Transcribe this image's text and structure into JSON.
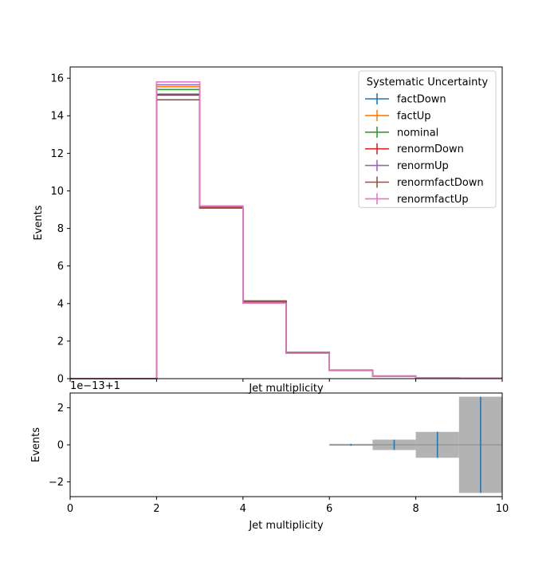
{
  "chart_data": [
    {
      "type": "step",
      "panel": "top",
      "title": "",
      "xlabel": "Jet multiplicity",
      "ylabel": "Events",
      "xlim": [
        0,
        10
      ],
      "ylim": [
        0,
        16.6
      ],
      "yticks": [
        0,
        2,
        4,
        6,
        8,
        10,
        12,
        14,
        16
      ],
      "xticks": [
        0,
        2,
        4,
        6,
        8,
        10
      ],
      "xtick_labels_shown": false,
      "bin_edges": [
        0,
        1,
        2,
        3,
        4,
        5,
        6,
        7,
        8,
        9,
        10
      ],
      "legend": {
        "title": "Systematic Uncertainty",
        "placement": "top-right"
      },
      "series": [
        {
          "name": "factDown",
          "color": "#1f77b4",
          "values": [
            0,
            0,
            15.15,
            9.12,
            4.1,
            1.38,
            0.44,
            0.13,
            0.05,
            0.02
          ]
        },
        {
          "name": "factUp",
          "color": "#ff7f0e",
          "values": [
            0,
            0,
            15.55,
            9.15,
            4.08,
            1.37,
            0.44,
            0.13,
            0.05,
            0.02
          ]
        },
        {
          "name": "nominal",
          "color": "#2ca02c",
          "values": [
            0,
            0,
            15.4,
            9.14,
            4.09,
            1.38,
            0.44,
            0.13,
            0.05,
            0.02
          ]
        },
        {
          "name": "renormDown",
          "color": "#d62728",
          "values": [
            0,
            0,
            15.1,
            9.1,
            4.12,
            1.39,
            0.45,
            0.14,
            0.05,
            0.02
          ]
        },
        {
          "name": "renormUp",
          "color": "#9467bd",
          "values": [
            0,
            0,
            15.65,
            9.18,
            4.05,
            1.36,
            0.43,
            0.13,
            0.05,
            0.02
          ]
        },
        {
          "name": "renormfactDown",
          "color": "#8c564b",
          "values": [
            0,
            0,
            14.85,
            9.08,
            4.14,
            1.4,
            0.45,
            0.14,
            0.05,
            0.02
          ]
        },
        {
          "name": "renormfactUp",
          "color": "#e377c2",
          "values": [
            0,
            0,
            15.8,
            9.2,
            4.02,
            1.35,
            0.43,
            0.13,
            0.05,
            0.02
          ]
        }
      ]
    },
    {
      "type": "ratio-band",
      "panel": "bottom",
      "xlabel": "Jet multiplicity",
      "ylabel": "Events",
      "offset_label": "1e−13+1",
      "xlim": [
        0,
        10
      ],
      "ylim": [
        -2.8,
        2.8
      ],
      "yticks": [
        -2,
        0,
        2
      ],
      "ytick_labels": [
        "−2",
        "0",
        "2"
      ],
      "xticks": [
        0,
        2,
        4,
        6,
        8,
        10
      ],
      "xtick_labels": [
        "0",
        "2",
        "4",
        "6",
        "8",
        "10"
      ],
      "band_color": "#b3b3b3",
      "errorbar_color": "#1f77b4",
      "bins": [
        {
          "lo": 6,
          "hi": 7,
          "center": 6.5,
          "value": 0,
          "err": 0.05
        },
        {
          "lo": 7,
          "hi": 8,
          "center": 7.5,
          "value": 0,
          "err": 0.28
        },
        {
          "lo": 8,
          "hi": 9,
          "center": 8.5,
          "value": 0,
          "err": 0.7
        },
        {
          "lo": 9,
          "hi": 10,
          "center": 9.5,
          "value": 0,
          "err": 2.6
        }
      ]
    }
  ]
}
